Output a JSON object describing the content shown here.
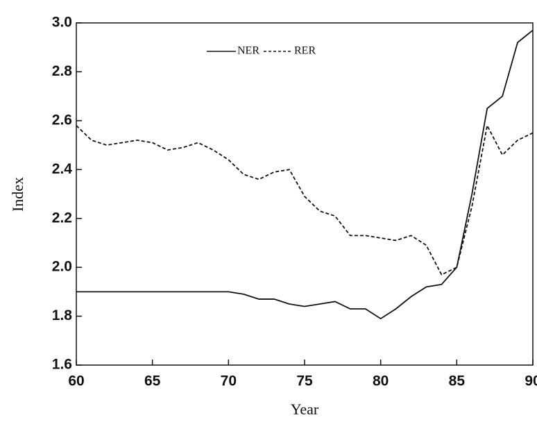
{
  "chart_data": {
    "type": "line",
    "xlabel": "Year",
    "ylabel": "Index",
    "x": [
      60,
      61,
      62,
      63,
      64,
      65,
      66,
      67,
      68,
      69,
      70,
      71,
      72,
      73,
      74,
      75,
      76,
      77,
      78,
      79,
      80,
      81,
      82,
      83,
      84,
      85,
      86,
      87,
      88,
      89,
      90
    ],
    "series": [
      {
        "name": "NER",
        "color": "#111111",
        "dash": "solid",
        "values": [
          1.9,
          1.9,
          1.9,
          1.9,
          1.9,
          1.9,
          1.9,
          1.9,
          1.9,
          1.9,
          1.9,
          1.89,
          1.87,
          1.87,
          1.85,
          1.84,
          1.85,
          1.86,
          1.83,
          1.83,
          1.79,
          1.83,
          1.88,
          1.92,
          1.93,
          2.0,
          2.3,
          2.65,
          2.7,
          2.92,
          2.97
        ]
      },
      {
        "name": "RER",
        "color": "#111111",
        "dash": "dashed",
        "values": [
          2.58,
          2.52,
          2.5,
          2.51,
          2.52,
          2.51,
          2.48,
          2.49,
          2.51,
          2.48,
          2.44,
          2.38,
          2.36,
          2.39,
          2.4,
          2.29,
          2.23,
          2.21,
          2.13,
          2.13,
          2.12,
          2.11,
          2.13,
          2.09,
          1.97,
          2.0,
          2.25,
          2.58,
          2.46,
          2.52,
          2.55
        ]
      }
    ],
    "xlim": [
      60,
      90
    ],
    "xticks": [
      60,
      65,
      70,
      75,
      80,
      85,
      90
    ],
    "ylim": [
      1.6,
      3.0
    ],
    "yticks": [
      1.6,
      1.8,
      {
        "value": 2,
        "label": "2.0"
      },
      2.2,
      2.4,
      2.6,
      2.8,
      {
        "value": 3,
        "label": "3.0"
      }
    ],
    "legend": "top"
  }
}
